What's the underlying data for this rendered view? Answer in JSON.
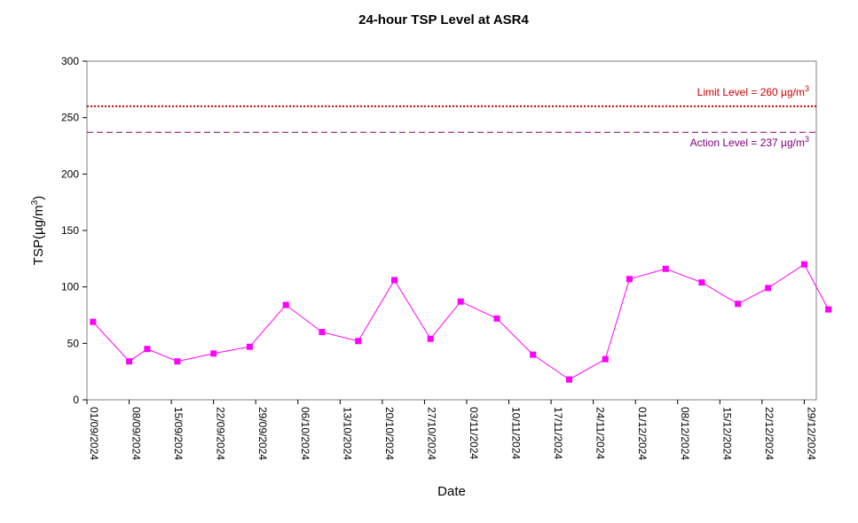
{
  "chart_data": {
    "type": "line",
    "title": "24-hour TSP Level at ASR4",
    "xlabel": "Date",
    "ylabel": "TSP(µg/m³)",
    "ylabel_parts": {
      "base": "TSP(",
      "mu": "µ",
      "unit": "g/m",
      "sup": "3",
      "close": ")"
    },
    "ylim": [
      0,
      300
    ],
    "yticks": [
      0,
      50,
      100,
      150,
      200,
      250,
      300
    ],
    "xlim": [
      "2024-09-01",
      "2024-12-31"
    ],
    "xticks": [
      "01/09/2024",
      "08/09/2024",
      "15/09/2024",
      "22/09/2024",
      "29/09/2024",
      "06/10/2024",
      "13/10/2024",
      "20/10/2024",
      "27/10/2024",
      "03/11/2024",
      "10/11/2024",
      "17/11/2024",
      "24/11/2024",
      "01/12/2024",
      "08/12/2024",
      "15/12/2024",
      "22/12/2024",
      "29/12/2024"
    ],
    "grid": false,
    "series": [
      {
        "color": "#ff00ff",
        "points": [
          {
            "x": "2024-09-02",
            "y": 69
          },
          {
            "x": "2024-09-08",
            "y": 34
          },
          {
            "x": "2024-09-11",
            "y": 45
          },
          {
            "x": "2024-09-16",
            "y": 34
          },
          {
            "x": "2024-09-22",
            "y": 41
          },
          {
            "x": "2024-09-28",
            "y": 47
          },
          {
            "x": "2024-10-04",
            "y": 84
          },
          {
            "x": "2024-10-10",
            "y": 60
          },
          {
            "x": "2024-10-16",
            "y": 52
          },
          {
            "x": "2024-10-22",
            "y": 106
          },
          {
            "x": "2024-10-28",
            "y": 54
          },
          {
            "x": "2024-11-02",
            "y": 87
          },
          {
            "x": "2024-11-08",
            "y": 72
          },
          {
            "x": "2024-11-14",
            "y": 40
          },
          {
            "x": "2024-11-20",
            "y": 18
          },
          {
            "x": "2024-11-26",
            "y": 36
          },
          {
            "x": "2024-11-30",
            "y": 107
          },
          {
            "x": "2024-12-06",
            "y": 116
          },
          {
            "x": "2024-12-12",
            "y": 104
          },
          {
            "x": "2024-12-18",
            "y": 85
          },
          {
            "x": "2024-12-23",
            "y": 99
          },
          {
            "x": "2024-12-29",
            "y": 120
          },
          {
            "x": "2024-12-33",
            "y": 80
          }
        ]
      }
    ],
    "reference_lines": [
      {
        "value": 260,
        "color": "#cc0000",
        "style": "dotted",
        "label_prefix": "Limit Level  = 260 ",
        "label_mu": "µ",
        "label_unit": "g/m",
        "label_sup": "3",
        "label_position": "above-right"
      },
      {
        "value": 237,
        "color": "#800080",
        "style": "dashed",
        "label_prefix": "Action Level  = 237 ",
        "label_mu": "µ",
        "label_unit": "g/m",
        "label_sup": "3",
        "label_position": "below-right"
      }
    ]
  }
}
